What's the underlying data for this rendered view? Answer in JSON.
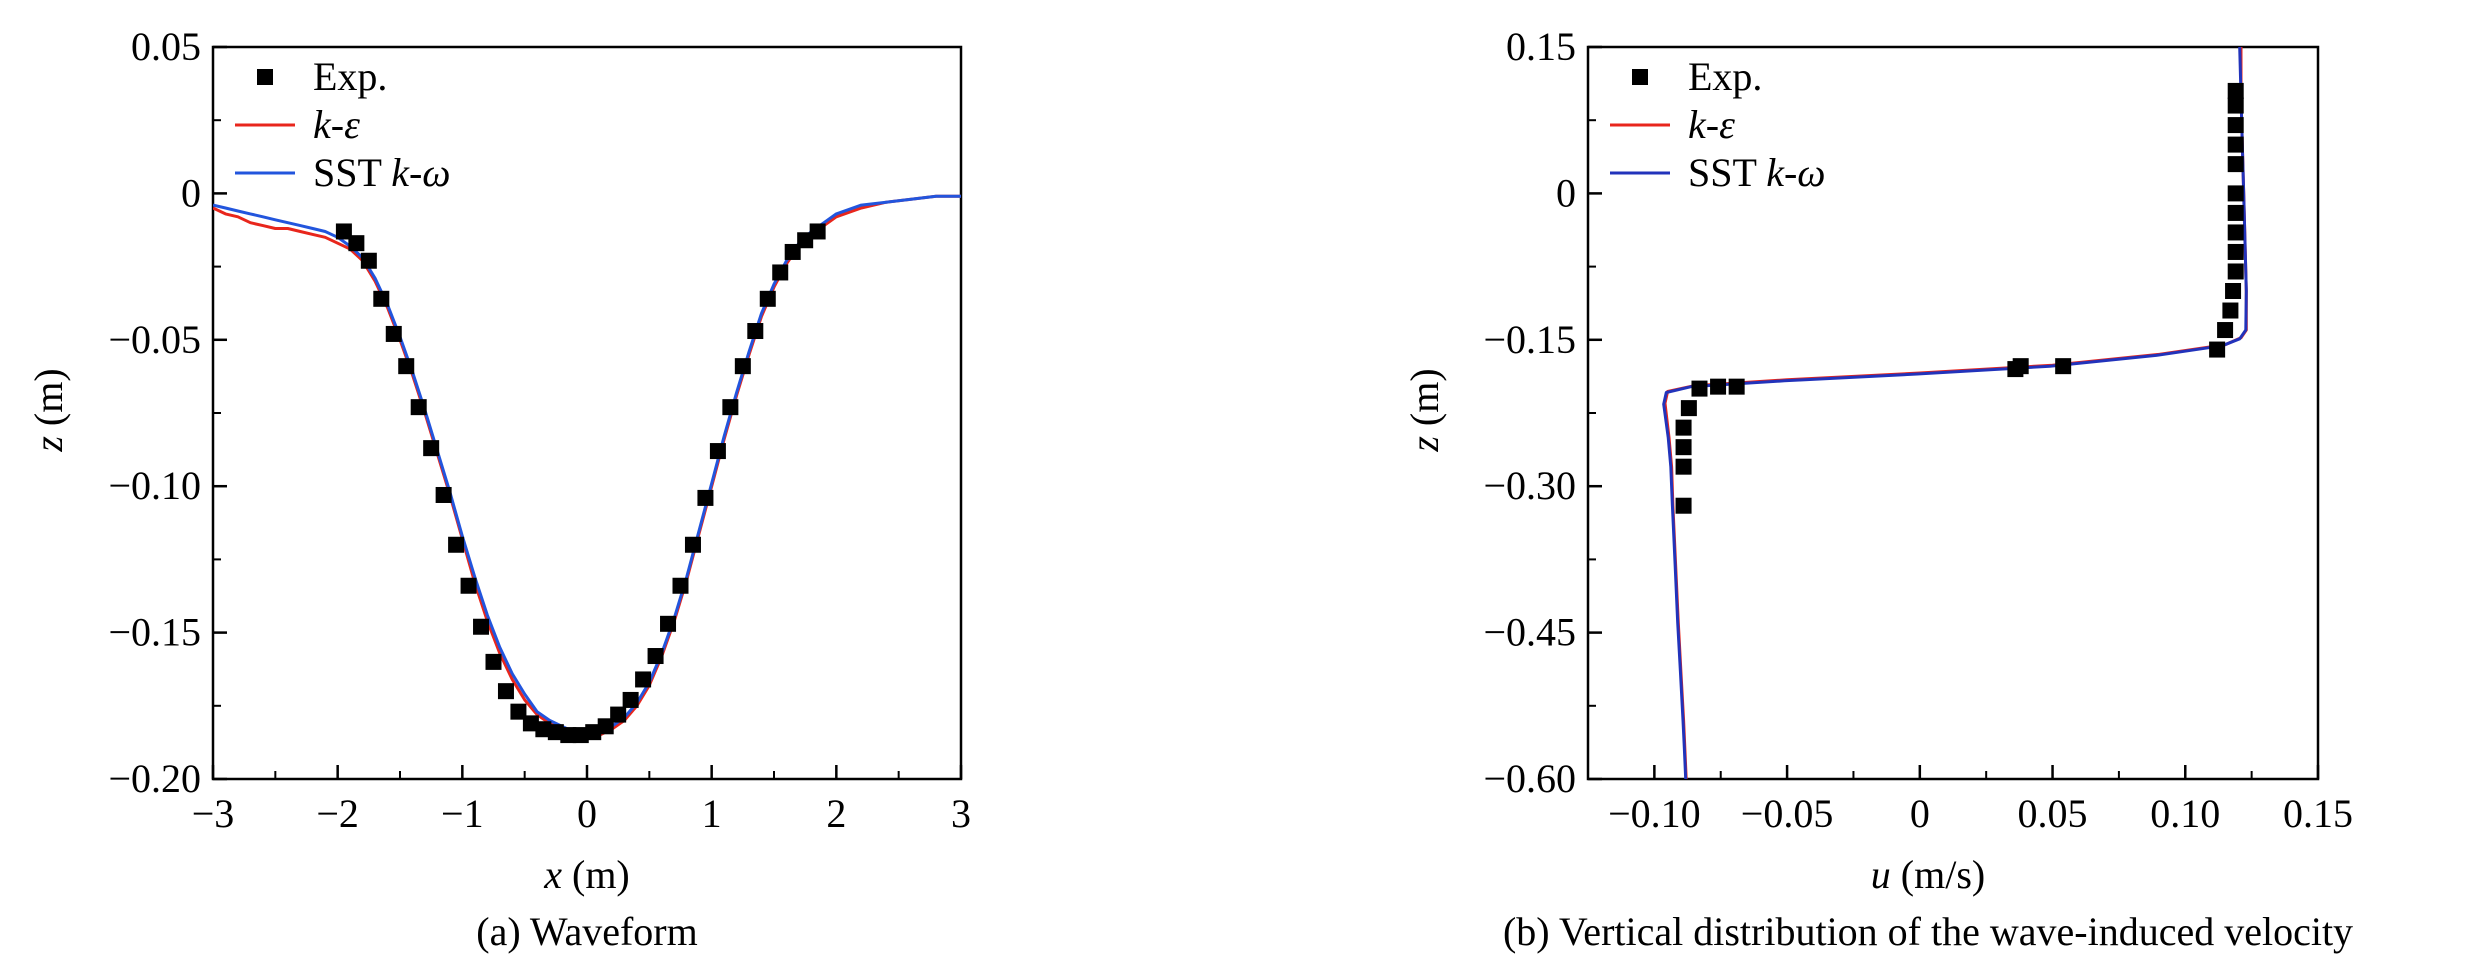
{
  "chart_data": [
    {
      "type": "line",
      "caption": "(a) Waveform",
      "xlabel_var": "x",
      "xlabel_unit": " (m)",
      "ylabel_var": "z",
      "ylabel_unit": " (m)",
      "xlim": [
        -3,
        3
      ],
      "ylim": [
        -0.2,
        0.05
      ],
      "xticks": [
        -3,
        -2,
        -1,
        0,
        1,
        2,
        3
      ],
      "xtick_labels": [
        "−3",
        "−2",
        "−1",
        "0",
        "1",
        "2",
        "3"
      ],
      "yticks": [
        0.05,
        0,
        -0.05,
        -0.1,
        -0.15,
        -0.2
      ],
      "ytick_labels": [
        "0.05",
        "0",
        "−0.05",
        "−0.10",
        "−0.15",
        "−0.20"
      ],
      "legend_position": "top-left",
      "series": [
        {
          "name": "Exp.",
          "kind": "scatter",
          "color": "#000000",
          "x": [
            -1.95,
            -1.85,
            -1.75,
            -1.65,
            -1.55,
            -1.45,
            -1.35,
            -1.25,
            -1.15,
            -1.05,
            -0.95,
            -0.85,
            -0.75,
            -0.65,
            -0.55,
            -0.45,
            -0.35,
            -0.25,
            -0.15,
            -0.05,
            0.05,
            0.15,
            0.25,
            0.35,
            0.45,
            0.55,
            0.65,
            0.75,
            0.85,
            0.95,
            1.05,
            1.15,
            1.25,
            1.35,
            1.45,
            1.55,
            1.65,
            1.75,
            1.85
          ],
          "y": [
            -0.013,
            -0.017,
            -0.023,
            -0.036,
            -0.048,
            -0.059,
            -0.073,
            -0.087,
            -0.103,
            -0.12,
            -0.134,
            -0.148,
            -0.16,
            -0.17,
            -0.177,
            -0.181,
            -0.183,
            -0.184,
            -0.185,
            -0.185,
            -0.184,
            -0.182,
            -0.178,
            -0.173,
            -0.166,
            -0.158,
            -0.147,
            -0.134,
            -0.12,
            -0.104,
            -0.088,
            -0.073,
            -0.059,
            -0.047,
            -0.036,
            -0.027,
            -0.02,
            -0.016,
            -0.013
          ]
        },
        {
          "name": "k-ε",
          "name_italic": "k-ε",
          "name_plain": "",
          "kind": "line",
          "color": "#e8261c",
          "x": [
            -3.0,
            -2.9,
            -2.8,
            -2.7,
            -2.6,
            -2.5,
            -2.4,
            -2.3,
            -2.2,
            -2.1,
            -2.0,
            -1.9,
            -1.8,
            -1.7,
            -1.6,
            -1.5,
            -1.4,
            -1.3,
            -1.2,
            -1.1,
            -1.0,
            -0.9,
            -0.8,
            -0.7,
            -0.6,
            -0.5,
            -0.4,
            -0.3,
            -0.2,
            -0.1,
            0.0,
            0.1,
            0.2,
            0.3,
            0.4,
            0.5,
            0.6,
            0.7,
            0.8,
            0.9,
            1.0,
            1.1,
            1.2,
            1.3,
            1.4,
            1.5,
            1.6,
            1.7,
            1.8,
            1.9,
            2.0,
            2.2,
            2.4,
            2.6,
            2.8,
            3.0
          ],
          "y": [
            -0.005,
            -0.007,
            -0.008,
            -0.01,
            -0.011,
            -0.012,
            -0.012,
            -0.013,
            -0.014,
            -0.015,
            -0.017,
            -0.019,
            -0.023,
            -0.03,
            -0.039,
            -0.05,
            -0.062,
            -0.075,
            -0.089,
            -0.103,
            -0.118,
            -0.133,
            -0.146,
            -0.157,
            -0.166,
            -0.173,
            -0.178,
            -0.181,
            -0.183,
            -0.185,
            -0.186,
            -0.185,
            -0.183,
            -0.18,
            -0.175,
            -0.168,
            -0.158,
            -0.146,
            -0.132,
            -0.116,
            -0.1,
            -0.084,
            -0.069,
            -0.055,
            -0.042,
            -0.032,
            -0.024,
            -0.018,
            -0.014,
            -0.011,
            -0.008,
            -0.005,
            -0.003,
            -0.002,
            -0.001,
            -0.001
          ]
        },
        {
          "name": "SST k-ω",
          "name_italic": "k-ω",
          "name_plain": "SST ",
          "kind": "line",
          "color": "#2255dd",
          "x": [
            -3.0,
            -2.9,
            -2.8,
            -2.7,
            -2.6,
            -2.5,
            -2.4,
            -2.3,
            -2.2,
            -2.1,
            -2.0,
            -1.9,
            -1.8,
            -1.7,
            -1.6,
            -1.5,
            -1.4,
            -1.3,
            -1.2,
            -1.1,
            -1.0,
            -0.9,
            -0.8,
            -0.7,
            -0.6,
            -0.5,
            -0.4,
            -0.3,
            -0.2,
            -0.1,
            0.0,
            0.1,
            0.2,
            0.3,
            0.4,
            0.5,
            0.6,
            0.7,
            0.8,
            0.9,
            1.0,
            1.1,
            1.2,
            1.3,
            1.4,
            1.5,
            1.6,
            1.7,
            1.8,
            1.9,
            2.0,
            2.2,
            2.4,
            2.6,
            2.8,
            3.0
          ],
          "y": [
            -0.004,
            -0.005,
            -0.006,
            -0.007,
            -0.008,
            -0.009,
            -0.01,
            -0.011,
            -0.012,
            -0.013,
            -0.015,
            -0.018,
            -0.022,
            -0.029,
            -0.038,
            -0.049,
            -0.061,
            -0.074,
            -0.088,
            -0.102,
            -0.117,
            -0.131,
            -0.144,
            -0.155,
            -0.164,
            -0.171,
            -0.177,
            -0.18,
            -0.182,
            -0.184,
            -0.185,
            -0.184,
            -0.182,
            -0.179,
            -0.174,
            -0.167,
            -0.157,
            -0.145,
            -0.131,
            -0.115,
            -0.099,
            -0.083,
            -0.068,
            -0.054,
            -0.041,
            -0.031,
            -0.023,
            -0.017,
            -0.013,
            -0.01,
            -0.007,
            -0.004,
            -0.003,
            -0.002,
            -0.001,
            -0.001
          ]
        }
      ]
    },
    {
      "type": "line",
      "caption": "(b) Vertical distribution of the wave-induced velocity",
      "xlabel_var": "u",
      "xlabel_unit": " (m/s)",
      "ylabel_var": "z",
      "ylabel_unit": " (m)",
      "xlim": [
        -0.125,
        0.15
      ],
      "ylim": [
        -0.6,
        0.15
      ],
      "xticks": [
        -0.1,
        -0.05,
        0,
        0.05,
        0.1,
        0.15
      ],
      "xtick_labels": [
        "−0.10",
        "−0.05",
        "0",
        "0.05",
        "0.10",
        "0.15"
      ],
      "yticks": [
        0.15,
        0,
        -0.15,
        -0.3,
        -0.45,
        -0.6
      ],
      "ytick_labels": [
        "0.15",
        "0",
        "−0.15",
        "−0.30",
        "−0.45",
        "−0.60"
      ],
      "legend_position": "top-left",
      "series": [
        {
          "name": "Exp.",
          "kind": "scatter",
          "color": "#000000",
          "x": [
            0.119,
            0.119,
            0.119,
            0.119,
            0.119,
            0.119,
            0.119,
            0.119,
            0.119,
            0.119,
            0.118,
            0.117,
            0.115,
            0.112,
            0.054,
            0.038,
            0.036,
            -0.069,
            -0.076,
            -0.083,
            -0.087,
            -0.089,
            -0.089,
            -0.089,
            -0.089
          ],
          "y": [
            0.105,
            0.09,
            0.07,
            0.05,
            0.03,
            0.0,
            -0.02,
            -0.04,
            -0.06,
            -0.08,
            -0.1,
            -0.12,
            -0.14,
            -0.16,
            -0.177,
            -0.177,
            -0.18,
            -0.198,
            -0.198,
            -0.2,
            -0.22,
            -0.24,
            -0.26,
            -0.28,
            -0.32
          ]
        },
        {
          "name": "k-ε",
          "name_italic": "k-ε",
          "name_plain": "",
          "kind": "line",
          "color": "#e8261c",
          "x": [
            0.121,
            0.121,
            0.1215,
            0.122,
            0.1225,
            0.123,
            0.123,
            0.121,
            0.115,
            0.09,
            0.05,
            0.0,
            -0.05,
            -0.085,
            -0.095,
            -0.096,
            -0.0945,
            -0.0935,
            -0.093,
            -0.092,
            -0.091,
            -0.09,
            -0.089,
            -0.0885,
            -0.088
          ],
          "y": [
            0.15,
            0.1,
            0.05,
            0.0,
            -0.05,
            -0.1,
            -0.14,
            -0.148,
            -0.155,
            -0.165,
            -0.176,
            -0.184,
            -0.191,
            -0.197,
            -0.203,
            -0.215,
            -0.25,
            -0.28,
            -0.32,
            -0.38,
            -0.44,
            -0.49,
            -0.54,
            -0.57,
            -0.6
          ]
        },
        {
          "name": "SST k-ω",
          "name_italic": "k-ω",
          "name_plain": "SST ",
          "kind": "line",
          "color": "#2233bb",
          "x": [
            0.1205,
            0.121,
            0.1215,
            0.122,
            0.1225,
            0.123,
            0.1228,
            0.1205,
            0.114,
            0.089,
            0.049,
            -0.001,
            -0.051,
            -0.086,
            -0.0955,
            -0.0965,
            -0.0948,
            -0.0938,
            -0.0932,
            -0.0922,
            -0.0912,
            -0.0902,
            -0.0892,
            -0.0887,
            -0.0882
          ],
          "y": [
            0.15,
            0.1,
            0.05,
            0.0,
            -0.05,
            -0.1,
            -0.14,
            -0.149,
            -0.156,
            -0.166,
            -0.177,
            -0.185,
            -0.192,
            -0.198,
            -0.204,
            -0.216,
            -0.25,
            -0.28,
            -0.32,
            -0.38,
            -0.44,
            -0.49,
            -0.54,
            -0.57,
            -0.6
          ]
        }
      ]
    }
  ]
}
